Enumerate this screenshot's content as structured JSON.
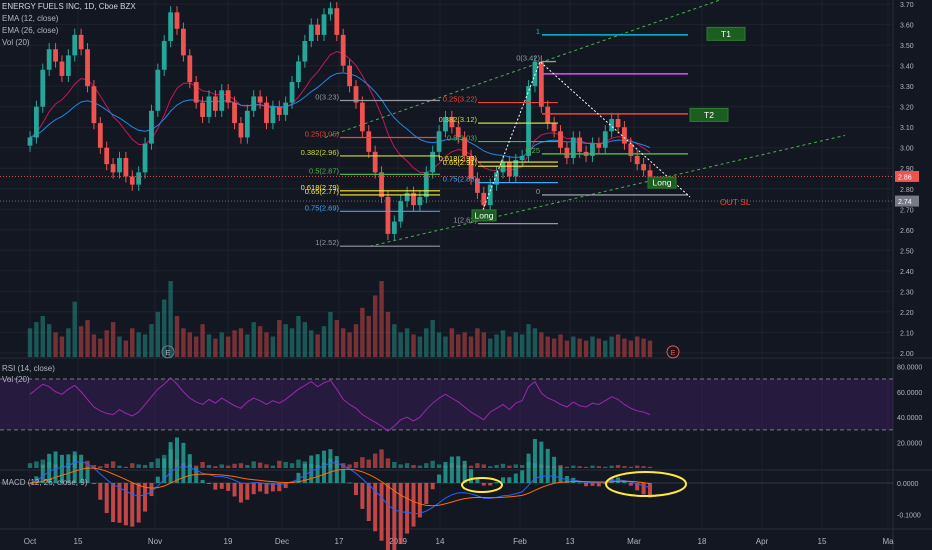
{
  "header": {
    "title": "ENERGY FUELS INC, 1D, Cboe BZX",
    "indicators": [
      "EMA (12, close)",
      "EMA (26, close)",
      "Vol (20)"
    ]
  },
  "panes": {
    "rsi_label": "RSI (14, close)",
    "rsi_vol_label": "Vol (20)",
    "macd_label": "MACD (12, 26, close, 9)"
  },
  "colors": {
    "background": "#131722",
    "up": "#26a69a",
    "down": "#ef5350",
    "rsi_line": "#9c27b0",
    "rsi_band": "#3a1f5c",
    "annotation": "#ffeb3b",
    "t1_line": "#00bcd4",
    "magenta_line": "#e040fb",
    "t2_line": "#f44336",
    "sl_label": "#f44336",
    "trend": "#4caf50"
  },
  "chart_data": {
    "type": "candlestick",
    "x_ticks": [
      "Oct",
      "15",
      "Nov",
      "19",
      "Dec",
      "17",
      "2019",
      "14",
      "Feb",
      "13",
      "Mar",
      "18",
      "Apr",
      "15",
      "Ma"
    ],
    "price_axis": [
      "3.70",
      "3.60",
      "3.50",
      "3.40",
      "3.30",
      "3.20",
      "3.10",
      "3.00",
      "2.90",
      "2.80",
      "2.70",
      "2.60",
      "2.50",
      "2.40",
      "2.30",
      "2.20",
      "2.10",
      "2.00"
    ],
    "price_badges": [
      {
        "label": "2.86",
        "color": "#ef5350"
      },
      {
        "label": "2.74",
        "color": "#787b86"
      }
    ],
    "rsi_axis": [
      "80.0000",
      "60.0000",
      "40.0000",
      "20.0000"
    ],
    "macd_axis": [
      "0.0000",
      "-0.1000"
    ],
    "fib_left": [
      {
        "label": "0(3.23)",
        "color": "#9598a1"
      },
      {
        "label": "0.25(3.05)",
        "color": "#f44336"
      },
      {
        "label": "0.382(2.96)",
        "color": "#cddc39"
      },
      {
        "label": "0.5(2.87)",
        "color": "#4caf50"
      },
      {
        "label": "0.618(2.79)",
        "color": "#ffeb3b"
      },
      {
        "label": "0.65(2.77)",
        "color": "#ffeb3b"
      },
      {
        "label": "0.75(2.69)",
        "color": "#42a5f5"
      },
      {
        "label": "1(2.52)",
        "color": "#9598a1"
      }
    ],
    "fib_mid": [
      {
        "label": "0.25(3.22)",
        "color": "#f44336"
      },
      {
        "label": "0.382(3.12)",
        "color": "#cddc39"
      },
      {
        "label": "0.5(3.03)",
        "color": "#4caf50"
      },
      {
        "label": "0.618(2.93)",
        "color": "#ffeb3b"
      },
      {
        "label": "0.65(2.91)",
        "color": "#ffeb3b"
      },
      {
        "label": "0.75(2.83)",
        "color": "#42a5f5"
      },
      {
        "label": "1(2.63)",
        "color": "#9598a1"
      }
    ],
    "fib_right": [
      {
        "label": "1",
        "color": "#00bcd4"
      },
      {
        "label": "0(3.42)",
        "color": "#9598a1"
      },
      {
        "label": "0.25",
        "color": "#4caf50"
      },
      {
        "label": "0",
        "color": "#9598a1"
      }
    ],
    "annotations": [
      {
        "label": "T1",
        "color": "#1b5e20"
      },
      {
        "label": "T2",
        "color": "#1b5e20"
      },
      {
        "label": "Long",
        "color": "#1b5e20"
      },
      {
        "label": "Long",
        "color": "#1b5e20"
      },
      {
        "label": "OUT SL",
        "color": "#f44336"
      }
    ],
    "earnings_markers": [
      "E",
      "E"
    ],
    "close_series": [
      3.05,
      3.2,
      3.38,
      3.48,
      3.42,
      3.35,
      3.45,
      3.55,
      3.48,
      3.3,
      3.12,
      3.0,
      2.92,
      2.88,
      2.95,
      2.86,
      2.82,
      2.88,
      3.02,
      3.18,
      3.38,
      3.52,
      3.66,
      3.58,
      3.45,
      3.32,
      3.22,
      3.15,
      3.25,
      3.18,
      3.28,
      3.22,
      3.12,
      3.05,
      3.18,
      3.25,
      3.22,
      3.12,
      3.2,
      3.16,
      3.22,
      3.32,
      3.42,
      3.52,
      3.6,
      3.55,
      3.65,
      3.68,
      3.55,
      3.4,
      3.3,
      3.22,
      3.08,
      2.98,
      2.88,
      2.76,
      2.58,
      2.64,
      2.74,
      2.78,
      2.72,
      2.76,
      2.88,
      2.98,
      3.08,
      3.15,
      3.1,
      3.05,
      2.96,
      2.85,
      2.78,
      2.72,
      2.82,
      2.88,
      2.93,
      2.86,
      2.94,
      2.96,
      3.3,
      3.42,
      3.2,
      3.12,
      3.08,
      3.0,
      2.95,
      3.05,
      2.98,
      2.96,
      3.02,
      3.0,
      3.08,
      3.14,
      3.1,
      3.02,
      2.96,
      2.92,
      2.89,
      2.86
    ],
    "volume_series": [
      2.12,
      2.15,
      2.18,
      2.14,
      2.1,
      2.08,
      2.12,
      2.25,
      2.13,
      2.16,
      2.09,
      2.07,
      2.11,
      2.15,
      2.08,
      2.06,
      2.12,
      2.1,
      2.09,
      2.14,
      2.2,
      2.26,
      2.35,
      2.18,
      2.12,
      2.1,
      2.08,
      2.14,
      2.09,
      2.07,
      2.1,
      2.08,
      2.11,
      2.12,
      2.09,
      2.15,
      2.13,
      2.1,
      2.08,
      2.16,
      2.14,
      2.12,
      2.18,
      2.15,
      2.11,
      2.09,
      2.13,
      2.2,
      2.16,
      2.12,
      2.1,
      2.14,
      2.22,
      2.18,
      2.28,
      2.35,
      2.2,
      2.14,
      2.1,
      2.12,
      2.09,
      2.08,
      2.12,
      2.16,
      2.1,
      2.08,
      2.12,
      2.09,
      2.1,
      2.08,
      2.12,
      2.1,
      2.07,
      2.09,
      2.11,
      2.08,
      2.1,
      2.09,
      2.14,
      2.12,
      2.1,
      2.08,
      2.07,
      2.09,
      2.06,
      2.08,
      2.07,
      2.06,
      2.08,
      2.07,
      2.06,
      2.08,
      2.09,
      2.07,
      2.06,
      2.08,
      2.07,
      2.06
    ],
    "rsi_series": [
      58,
      62,
      66,
      64,
      60,
      58,
      62,
      65,
      60,
      54,
      48,
      45,
      43,
      42,
      46,
      43,
      41,
      44,
      50,
      56,
      62,
      66,
      71,
      66,
      60,
      55,
      52,
      50,
      54,
      51,
      55,
      52,
      49,
      47,
      52,
      55,
      53,
      50,
      53,
      51,
      54,
      58,
      62,
      65,
      68,
      64,
      67,
      69,
      62,
      54,
      50,
      47,
      42,
      39,
      36,
      33,
      29,
      33,
      38,
      40,
      37,
      40,
      46,
      51,
      55,
      58,
      55,
      52,
      48,
      44,
      41,
      38,
      44,
      47,
      50,
      46,
      51,
      53,
      64,
      68,
      59,
      55,
      53,
      50,
      48,
      52,
      49,
      48,
      51,
      50,
      53,
      56,
      54,
      50,
      47,
      45,
      44,
      42
    ],
    "rsi_bands": [
      70,
      30
    ],
    "ylim": [
      1.98,
      3.72
    ],
    "rsi_ylim": [
      0,
      85
    ],
    "macd_ylim": [
      -0.14,
      0.035
    ]
  }
}
